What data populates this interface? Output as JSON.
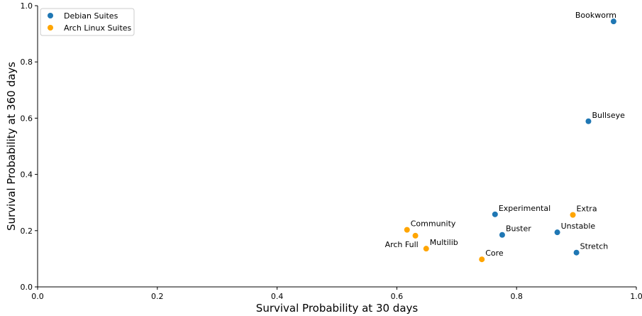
{
  "chart_data": {
    "type": "scatter",
    "xlabel": "Survival Probability at 30 days",
    "ylabel": "Survival Probability at 360 days",
    "xlim": [
      0.0,
      1.0
    ],
    "ylim": [
      0.0,
      1.0
    ],
    "grid": false,
    "legend_position": "top-left",
    "x_ticks": [
      "0.0",
      "0.2",
      "0.4",
      "0.6",
      "0.8",
      "1.0"
    ],
    "y_ticks": [
      "0.0",
      "0.2",
      "0.4",
      "0.6",
      "0.8",
      "1.0"
    ],
    "series": [
      {
        "name": "Debian Suites",
        "color": "#1f77b4",
        "points": [
          {
            "label": "Bookworm",
            "x": 0.962,
            "y": 0.944
          },
          {
            "label": "Bullseye",
            "x": 0.92,
            "y": 0.589
          },
          {
            "label": "Experimental",
            "x": 0.764,
            "y": 0.258
          },
          {
            "label": "Buster",
            "x": 0.776,
            "y": 0.185
          },
          {
            "label": "Unstable",
            "x": 0.868,
            "y": 0.194
          },
          {
            "label": "Stretch",
            "x": 0.9,
            "y": 0.122
          }
        ]
      },
      {
        "name": "Arch Linux Suites",
        "color": "#ffa500",
        "points": [
          {
            "label": "Community",
            "x": 0.617,
            "y": 0.203
          },
          {
            "label": "Arch Full",
            "x": 0.631,
            "y": 0.182
          },
          {
            "label": "Multilib",
            "x": 0.649,
            "y": 0.136
          },
          {
            "label": "Core",
            "x": 0.742,
            "y": 0.098
          },
          {
            "label": "Extra",
            "x": 0.894,
            "y": 0.256
          }
        ]
      }
    ]
  }
}
